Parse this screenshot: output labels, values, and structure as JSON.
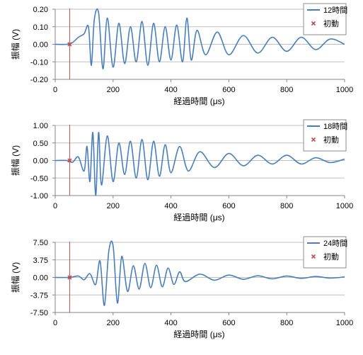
{
  "chart_data": [
    {
      "type": "line",
      "xlabel": "経過時間 (μs)",
      "ylabel": "振幅 (V)",
      "xlim": [
        0,
        1000
      ],
      "ylim": [
        -0.2,
        0.2
      ],
      "xticks": [
        "0",
        "200",
        "400",
        "600",
        "800",
        "1000"
      ],
      "yticks": [
        "0.20",
        "0.10",
        "0.00",
        "-0.10",
        "-0.20"
      ],
      "grid": true,
      "legend_position": "top-right",
      "onset_line_x": 50,
      "series": [
        {
          "name": "12時間",
          "kind": "line",
          "color": "#4a7ebb",
          "x": [
            0,
            40,
            60,
            80,
            100,
            115,
            125,
            135,
            150,
            165,
            180,
            200,
            220,
            240,
            260,
            280,
            300,
            320,
            340,
            360,
            380,
            400,
            420,
            440,
            455,
            470,
            490,
            520,
            560,
            600,
            650,
            700,
            750,
            800,
            850,
            900,
            950,
            1000
          ],
          "y": [
            0,
            0,
            0.01,
            0.04,
            0.06,
            0.1,
            -0.12,
            0.14,
            0.18,
            -0.14,
            0.15,
            -0.13,
            0.12,
            -0.11,
            0.1,
            -0.1,
            0.13,
            -0.12,
            0.12,
            -0.1,
            0.1,
            -0.09,
            0.11,
            -0.1,
            0.15,
            -0.09,
            0.08,
            -0.06,
            0.07,
            -0.06,
            0.05,
            -0.05,
            0.04,
            -0.04,
            0.04,
            -0.03,
            0.03,
            0
          ]
        },
        {
          "name": "初動",
          "kind": "marker",
          "marker": "x",
          "color": "#c0504d",
          "x": [
            50
          ],
          "y": [
            0
          ]
        }
      ]
    },
    {
      "type": "line",
      "xlabel": "経過時間 (μs)",
      "ylabel": "振幅 (V)",
      "xlim": [
        0,
        1000
      ],
      "ylim": [
        -1.0,
        1.0
      ],
      "xticks": [
        "0",
        "200",
        "400",
        "600",
        "800",
        "1000"
      ],
      "yticks": [
        "1.00",
        "0.50",
        "0.00",
        "-0.50",
        "-1.00"
      ],
      "grid": true,
      "legend_position": "top-right",
      "onset_line_x": 50,
      "series": [
        {
          "name": "18時間",
          "kind": "line",
          "color": "#4a7ebb",
          "x": [
            0,
            40,
            60,
            80,
            100,
            110,
            120,
            130,
            140,
            150,
            160,
            180,
            200,
            220,
            240,
            260,
            280,
            300,
            320,
            340,
            360,
            380,
            400,
            430,
            460,
            500,
            550,
            600,
            650,
            700,
            750,
            800,
            850,
            900,
            950,
            1000
          ],
          "y": [
            0,
            0,
            -0.05,
            0.1,
            -0.3,
            0.4,
            -0.6,
            0.8,
            -1.0,
            0.8,
            -0.7,
            0.7,
            -0.6,
            0.5,
            -0.4,
            0.55,
            -0.5,
            0.6,
            -0.55,
            0.55,
            -0.45,
            0.45,
            -0.35,
            0.4,
            -0.3,
            0.25,
            -0.2,
            0.2,
            -0.15,
            0.15,
            -0.1,
            0.15,
            -0.1,
            0.08,
            -0.06,
            0.04
          ]
        },
        {
          "name": "初動",
          "kind": "marker",
          "marker": "x",
          "color": "#c0504d",
          "x": [
            50
          ],
          "y": [
            0
          ]
        }
      ]
    },
    {
      "type": "line",
      "xlabel": "経過時間 (μs)",
      "ylabel": "振幅 (V)",
      "xlim": [
        0,
        1000
      ],
      "ylim": [
        -7.5,
        7.5
      ],
      "xticks": [
        "0",
        "200",
        "400",
        "600",
        "800",
        "1000"
      ],
      "yticks": [
        "7.50",
        "3.75",
        "0.00",
        "-3.75",
        "-7.50"
      ],
      "grid": true,
      "legend_position": "top-right",
      "onset_line_x": 50,
      "series": [
        {
          "name": "24時間",
          "kind": "line",
          "color": "#4a7ebb",
          "x": [
            0,
            50,
            80,
            100,
            120,
            140,
            155,
            170,
            185,
            200,
            215,
            230,
            250,
            270,
            290,
            310,
            330,
            350,
            370,
            390,
            410,
            430,
            450,
            500,
            550,
            600,
            650,
            700,
            750,
            800,
            850,
            900,
            950,
            1000
          ],
          "y": [
            0,
            0,
            0.3,
            -0.5,
            0.8,
            -1.5,
            3.5,
            -6.0,
            5.5,
            6.8,
            -5.5,
            4.5,
            -3.0,
            2.5,
            -2.5,
            3.0,
            -2.2,
            2.6,
            -2.0,
            2.0,
            -1.5,
            1.2,
            -0.9,
            0.7,
            -0.6,
            0.5,
            -0.4,
            0.35,
            -0.3,
            0.3,
            -0.2,
            0.2,
            -0.15,
            0.1
          ]
        },
        {
          "name": "初動",
          "kind": "marker",
          "marker": "x",
          "color": "#c0504d",
          "x": [
            50
          ],
          "y": [
            0
          ]
        }
      ]
    }
  ],
  "colors": {
    "series_line": "#4a7ebb",
    "onset_marker": "#c0504d",
    "onset_line": "#c0504d",
    "grid": "#bfbfbf",
    "axis": "#868686"
  }
}
